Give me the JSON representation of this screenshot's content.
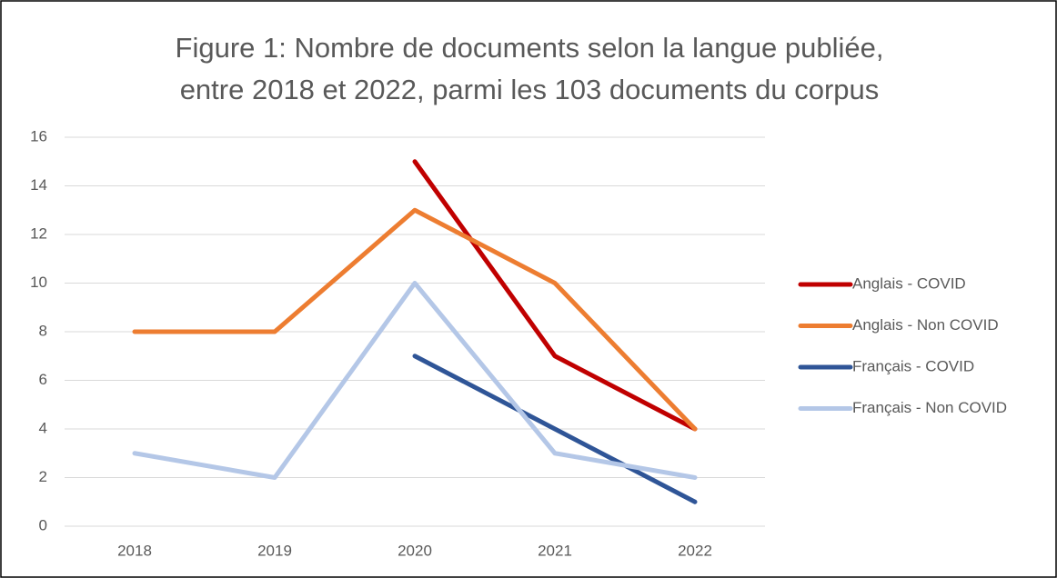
{
  "chart_data": {
    "type": "line",
    "title": [
      "Figure 1: Nombre de documents selon la langue publiée,",
      "entre 2018 et 2022, parmi les 103 documents du corpus"
    ],
    "categories": [
      "2018",
      "2019",
      "2020",
      "2021",
      "2022"
    ],
    "series": [
      {
        "name": "Anglais - COVID",
        "color": "#c00000",
        "values": [
          null,
          null,
          15,
          7,
          4
        ]
      },
      {
        "name": "Anglais - Non COVID",
        "color": "#ed7d31",
        "values": [
          8,
          8,
          13,
          10,
          4
        ]
      },
      {
        "name": "Français - COVID",
        "color": "#2f5597",
        "values": [
          null,
          null,
          7,
          4,
          1
        ]
      },
      {
        "name": "Français - Non COVID",
        "color": "#b4c7e7",
        "values": [
          3,
          2,
          10,
          3,
          2
        ]
      }
    ],
    "ylim": [
      0,
      16
    ],
    "yticks": [
      0,
      2,
      4,
      6,
      8,
      10,
      12,
      14,
      16
    ],
    "grid": true,
    "legend": "right"
  }
}
